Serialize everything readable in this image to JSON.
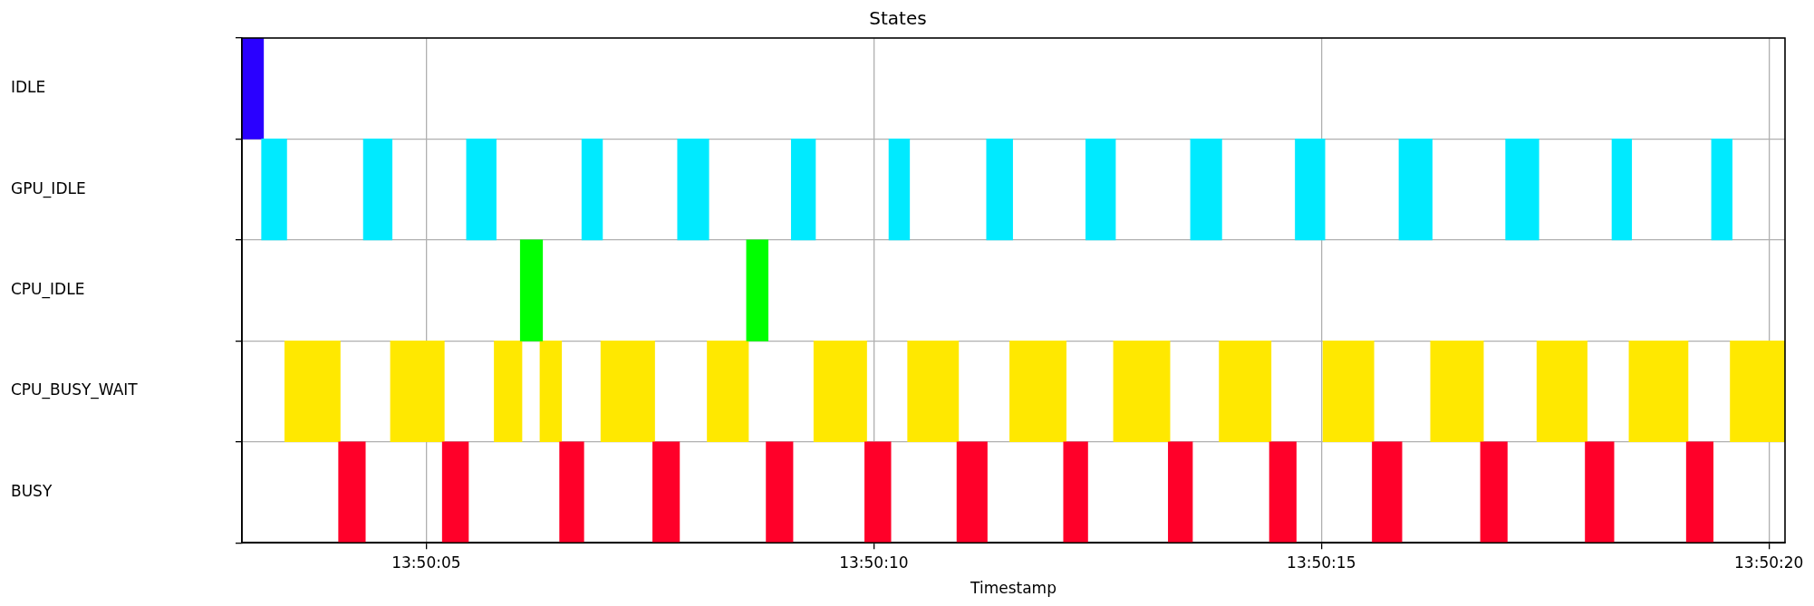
{
  "chart_data": {
    "type": "bar",
    "orientation": "horizontal",
    "title": "States",
    "xlabel": "Timestamp",
    "categories": [
      "IDLE",
      "GPU_IDLE",
      "CPU_IDLE",
      "CPU_BUSY_WAIT",
      "BUSY"
    ],
    "xlim": [
      13.83415,
      13.838939
    ],
    "xticks": [
      {
        "value": 13.834722,
        "label": "13:50:05"
      },
      {
        "value": 13.836111,
        "label": "13:50:10"
      },
      {
        "value": 13.8375,
        "label": "13:50:15"
      },
      {
        "value": 13.838889,
        "label": "13:50:20"
      }
    ],
    "grid": true,
    "legend": false,
    "series": [
      {
        "colors": [
          "#2a00ff",
          "#00eaff",
          "#00ff00",
          "#ffe800",
          "#ff0029"
        ],
        "base": [
          13.83415,
          13.834211,
          13.835014,
          13.834283,
          13.83445
        ],
        "values": [
          6.7e-05,
          7.8e-05,
          6.9e-05,
          0.000172,
          8.3e-05
        ]
      },
      {
        "colors": [
          "#2a00ff",
          "#00eaff",
          "#00ff00",
          "#ffe800",
          "#ff0029"
        ],
        "base": [
          null,
          13.834527,
          13.835716,
          13.834611,
          13.834772
        ],
        "values": [
          null,
          8.9e-05,
          6.7e-05,
          0.000167,
          8.1e-05
        ]
      },
      {
        "colors": [
          "#2a00ff",
          "#00eaff",
          "#00ff00",
          "#ffe800",
          "#ff0029"
        ],
        "base": [
          null,
          13.834847,
          null,
          13.834933,
          13.835136
        ],
        "values": [
          null,
          9.2e-05,
          null,
          8.6e-05,
          7.5e-05
        ]
      },
      {
        "colors": [
          "#2a00ff",
          "#00eaff",
          "#00ff00",
          "#ffe800",
          "#ff0029"
        ],
        "base": [
          null,
          13.835205,
          null,
          13.835075,
          13.835425
        ],
        "values": [
          null,
          6.4e-05,
          null,
          6.7e-05,
          8.3e-05
        ]
      },
      {
        "colors": [
          "#2a00ff",
          "#00eaff",
          "#00ff00",
          "#ffe800",
          "#ff0029"
        ],
        "base": [
          null,
          13.835502,
          null,
          13.835264,
          13.835777
        ],
        "values": [
          null,
          9.7e-05,
          null,
          0.000167,
          8.3e-05
        ]
      },
      {
        "colors": [
          "#2a00ff",
          "#00eaff",
          "#00ff00",
          "#ffe800",
          "#ff0029"
        ],
        "base": [
          null,
          13.835855,
          null,
          13.835594,
          13.836083
        ],
        "values": [
          null,
          7.5e-05,
          null,
          0.000128,
          8.1e-05
        ]
      },
      {
        "colors": [
          "#2a00ff",
          "#00eaff",
          "#00ff00",
          "#ffe800",
          "#ff0029"
        ],
        "base": [
          null,
          13.836158,
          null,
          13.835925,
          13.836369
        ],
        "values": [
          null,
          6.4e-05,
          null,
          0.000164,
          9.4e-05
        ]
      },
      {
        "colors": [
          "#2a00ff",
          "#00eaff",
          "#00ff00",
          "#ffe800",
          "#ff0029"
        ],
        "base": [
          null,
          13.836461,
          null,
          13.836216,
          13.8367
        ],
        "values": [
          null,
          8.1e-05,
          null,
          0.000158,
          7.5e-05
        ]
      },
      {
        "colors": [
          "#2a00ff",
          "#00eaff",
          "#00ff00",
          "#ffe800",
          "#ff0029"
        ],
        "base": [
          null,
          13.836769,
          null,
          13.836533,
          13.837025
        ],
        "values": [
          null,
          9.2e-05,
          null,
          0.000175,
          7.5e-05
        ]
      },
      {
        "colors": [
          "#2a00ff",
          "#00eaff",
          "#00ff00",
          "#ffe800",
          "#ff0029"
        ],
        "base": [
          null,
          13.837094,
          null,
          13.836855,
          13.837339
        ],
        "values": [
          null,
          9.7e-05,
          null,
          0.000175,
          8.3e-05
        ]
      },
      {
        "colors": [
          "#2a00ff",
          "#00eaff",
          "#00ff00",
          "#ffe800",
          "#ff0029"
        ],
        "base": [
          null,
          13.837419,
          null,
          13.837183,
          13.837658
        ],
        "values": [
          null,
          9.2e-05,
          null,
          0.000161,
          9.2e-05
        ]
      },
      {
        "colors": [
          "#2a00ff",
          "#00eaff",
          "#00ff00",
          "#ffe800",
          "#ff0029"
        ],
        "base": [
          null,
          13.837741,
          null,
          13.837505,
          13.837994
        ],
        "values": [
          null,
          0.000103,
          null,
          0.000158,
          8.3e-05
        ]
      },
      {
        "colors": [
          "#2a00ff",
          "#00eaff",
          "#00ff00",
          "#ffe800",
          "#ff0029"
        ],
        "base": [
          null,
          13.838072,
          null,
          13.837839,
          13.838319
        ],
        "values": [
          null,
          0.000103,
          null,
          0.000164,
          8.9e-05
        ]
      },
      {
        "colors": [
          "#2a00ff",
          "#00eaff",
          "#00ff00",
          "#ffe800",
          "#ff0029"
        ],
        "base": [
          null,
          13.838402,
          null,
          13.838169,
          13.838633
        ],
        "values": [
          null,
          6.1e-05,
          null,
          0.000156,
          8.3e-05
        ]
      },
      {
        "colors": [
          "#2a00ff",
          "#00eaff",
          "#00ff00",
          "#ffe800",
          "#ff0029"
        ],
        "base": [
          null,
          13.838711,
          null,
          13.838455,
          null
        ],
        "values": [
          null,
          6.4e-05,
          null,
          0.000183,
          null
        ]
      },
      {
        "colors": [
          "#2a00ff",
          "#00eaff",
          "#00ff00",
          "#ffe800",
          "#ff0029"
        ],
        "base": [
          null,
          null,
          null,
          13.838769,
          null
        ],
        "values": [
          null,
          null,
          null,
          0.000169,
          null
        ]
      }
    ]
  }
}
